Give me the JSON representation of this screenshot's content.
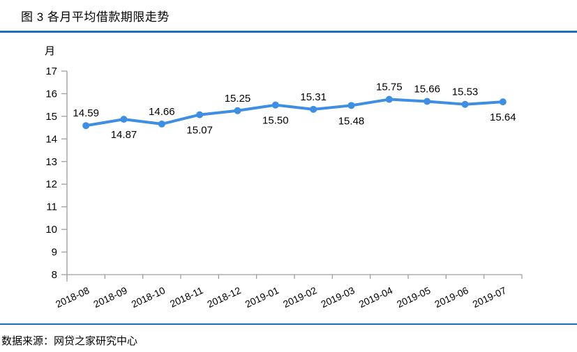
{
  "header": {
    "title": "图 3 各月平均借款期限走势"
  },
  "footer": {
    "source": "数据来源：网贷之家研究中心"
  },
  "colors": {
    "separator_blue": "#1E6FC0",
    "line_blue": "#3E8EE4",
    "axis_gray": "#9E9E9E",
    "text_black": "#000000"
  },
  "chart_data": {
    "type": "line",
    "title": "图 3 各月平均借款期限走势",
    "unit_label": "月",
    "categories": [
      "2018-08",
      "2018-09",
      "2018-10",
      "2018-11",
      "2018-12",
      "2019-01",
      "2019-02",
      "2019-03",
      "2019-04",
      "2019-05",
      "2019-06",
      "2019-07"
    ],
    "values": [
      14.59,
      14.87,
      14.66,
      15.07,
      15.25,
      15.5,
      15.31,
      15.48,
      15.75,
      15.66,
      15.53,
      15.64
    ],
    "value_labels": [
      "14.59",
      "14.87",
      "14.66",
      "15.07",
      "15.25",
      "15.50",
      "15.31",
      "15.48",
      "15.75",
      "15.66",
      "15.53",
      "15.64"
    ],
    "label_positions": [
      "above",
      "below",
      "above",
      "below",
      "above",
      "below",
      "above",
      "below",
      "above",
      "above",
      "above",
      "below"
    ],
    "ylim": [
      8,
      17
    ],
    "ytick_step": 1,
    "grid": false,
    "legend": "none",
    "marker": "circle",
    "line_color": "#3E8EE4",
    "axis_color": "#9E9E9E",
    "x_label_rotation_deg": -25
  }
}
